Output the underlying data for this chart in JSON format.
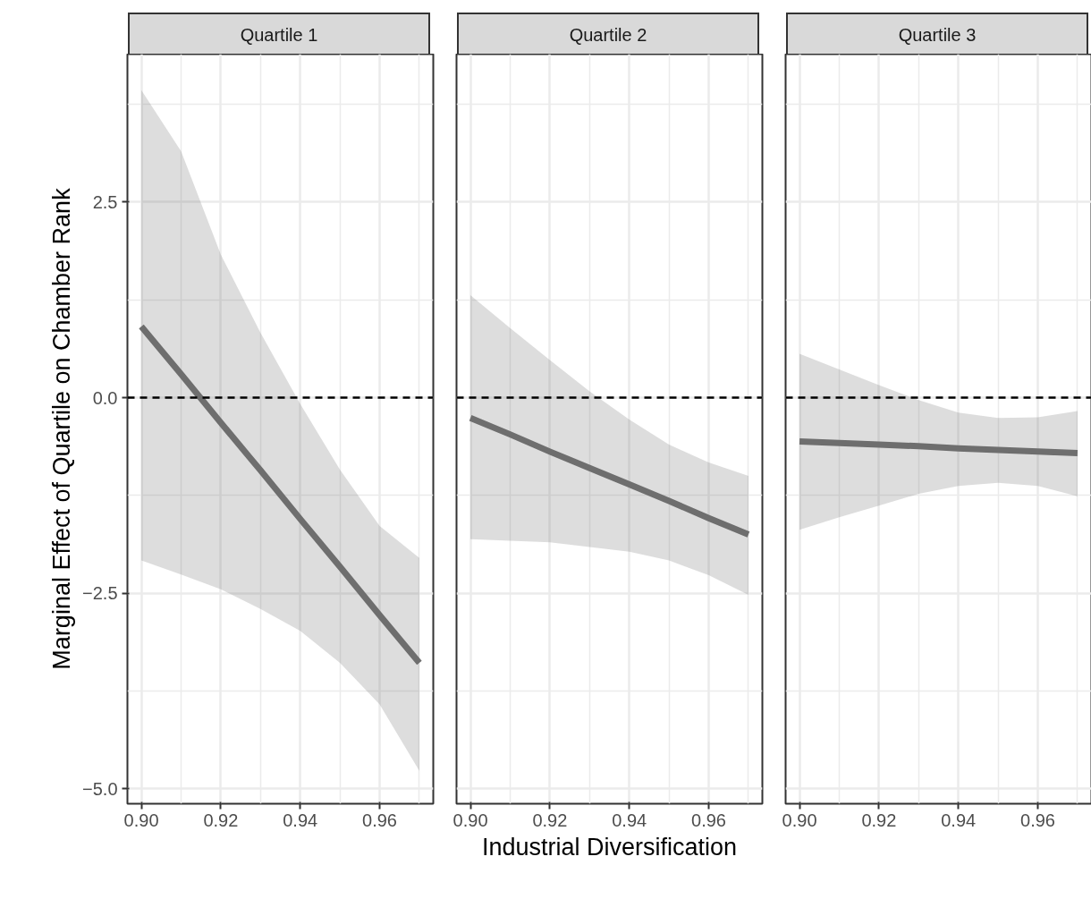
{
  "chart_data": [
    {
      "type": "line",
      "title": "Quartile 1",
      "ylabel": "Marginal Effect of Quartile on Chamber Rank",
      "xlim": [
        0.8965,
        0.9735
      ],
      "ylim": [
        -5.19,
        4.39
      ],
      "xticks": [
        {
          "value": 0.9,
          "label": "0.90"
        },
        {
          "value": 0.92,
          "label": "0.92"
        },
        {
          "value": 0.94,
          "label": "0.94"
        },
        {
          "value": 0.96,
          "label": "0.96"
        }
      ],
      "yticks": [
        {
          "value": -5,
          "label": "−5.0"
        },
        {
          "value": -2.5,
          "label": "−2.5"
        },
        {
          "value": 0,
          "label": "0.0"
        },
        {
          "value": 2.5,
          "label": "2.5"
        }
      ],
      "grid": true,
      "ref_lines": [
        {
          "axis": "y",
          "value": 0,
          "color": "#000000",
          "line_style": "dashed"
        }
      ],
      "series": [
        {
          "color": "#6e6e6e",
          "x": [
            0.9,
            0.91,
            0.92,
            0.93,
            0.94,
            0.95,
            0.96,
            0.97
          ],
          "values": [
            0.91,
            0.3,
            -0.32,
            -0.93,
            -1.55,
            -2.16,
            -2.78,
            -3.39
          ],
          "lower": [
            -2.08,
            -2.26,
            -2.45,
            -2.7,
            -2.98,
            -3.39,
            -3.92,
            -4.77
          ],
          "upper": [
            3.93,
            3.15,
            1.83,
            0.83,
            -0.08,
            -0.92,
            -1.64,
            -2.05
          ]
        }
      ]
    },
    {
      "type": "line",
      "title": "Quartile 2",
      "xlabel": "Industrial Diversification",
      "xlim": [
        0.8965,
        0.9735
      ],
      "ylim": [
        -5.19,
        4.39
      ],
      "tick_labels": "x",
      "xticks": [
        {
          "value": 0.9,
          "label": "0.90"
        },
        {
          "value": 0.92,
          "label": "0.92"
        },
        {
          "value": 0.94,
          "label": "0.94"
        },
        {
          "value": 0.96,
          "label": "0.96"
        }
      ],
      "yticks": [
        -5,
        -2.5,
        0,
        2.5
      ],
      "grid": true,
      "ref_lines": [
        {
          "axis": "y",
          "value": 0,
          "color": "#000000",
          "line_style": "dashed"
        }
      ],
      "series": [
        {
          "color": "#6e6e6e",
          "x": [
            0.9,
            0.91,
            0.92,
            0.93,
            0.94,
            0.95,
            0.96,
            0.97
          ],
          "values": [
            -0.26,
            -0.47,
            -0.69,
            -0.9,
            -1.11,
            -1.32,
            -1.54,
            -1.75
          ],
          "lower": [
            -1.81,
            -1.83,
            -1.85,
            -1.91,
            -1.97,
            -2.08,
            -2.27,
            -2.52
          ],
          "upper": [
            1.31,
            0.89,
            0.48,
            0.08,
            -0.28,
            -0.6,
            -0.83,
            -1.0
          ]
        }
      ]
    },
    {
      "type": "line",
      "title": "Quartile 3",
      "xlim": [
        0.8965,
        0.9735
      ],
      "ylim": [
        -5.19,
        4.39
      ],
      "tick_labels": "x",
      "xticks": [
        {
          "value": 0.9,
          "label": "0.90"
        },
        {
          "value": 0.92,
          "label": "0.92"
        },
        {
          "value": 0.94,
          "label": "0.94"
        },
        {
          "value": 0.96,
          "label": "0.96"
        }
      ],
      "yticks": [
        -5,
        -2.5,
        0,
        2.5
      ],
      "grid": true,
      "ref_lines": [
        {
          "axis": "y",
          "value": 0,
          "color": "#000000",
          "line_style": "dashed"
        }
      ],
      "series": [
        {
          "color": "#6e6e6e",
          "x": [
            0.9,
            0.91,
            0.92,
            0.93,
            0.94,
            0.95,
            0.96,
            0.97
          ],
          "values": [
            -0.56,
            -0.58,
            -0.6,
            -0.62,
            -0.65,
            -0.67,
            -0.69,
            -0.71
          ],
          "lower": [
            -1.69,
            -1.53,
            -1.38,
            -1.23,
            -1.13,
            -1.09,
            -1.13,
            -1.26
          ],
          "upper": [
            0.56,
            0.36,
            0.16,
            -0.03,
            -0.19,
            -0.26,
            -0.25,
            -0.17
          ]
        }
      ]
    }
  ]
}
